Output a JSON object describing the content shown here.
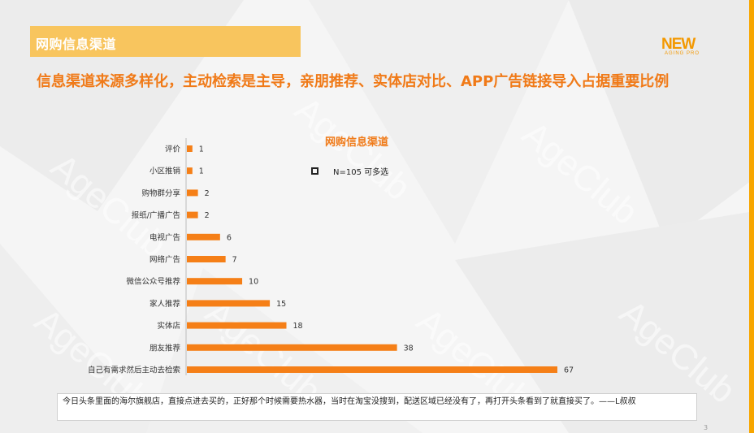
{
  "header": {
    "title": "网购信息渠道",
    "logo_text": "NEW",
    "logo_subtext": "AGING PRO"
  },
  "headline": "信息渠道来源多样化，主动检索是主导，亲朋推荐、实体店对比、APP广告链接导入占据重要比例",
  "watermark": "AgeClub",
  "colors": {
    "bar": "#f57f17",
    "accent": "#f07a18",
    "title_bar": "#f8c55e"
  },
  "chart_data": {
    "type": "bar",
    "orientation": "horizontal",
    "title": "网购信息渠道",
    "legend": "N=105  可多选",
    "legend_position": "top-right",
    "categories": [
      "评价",
      "小区推销",
      "购物群分享",
      "报纸/广播广告",
      "电视广告",
      "网络广告",
      "微信公众号推荐",
      "家人推荐",
      "实体店",
      "朋友推荐",
      "自己有需求然后主动去检索"
    ],
    "values": [
      1,
      1,
      2,
      2,
      6,
      7,
      10,
      15,
      18,
      38,
      67
    ],
    "xlim": [
      0,
      67
    ],
    "grid": false
  },
  "quote": "今日头条里面的海尔旗舰店，直接点进去买的，正好那个时候需要热水器，当时在淘宝没搜到，配送区域已经没有了，再打开头条看到了就直接买了。——L叔叔",
  "page_number": "3"
}
